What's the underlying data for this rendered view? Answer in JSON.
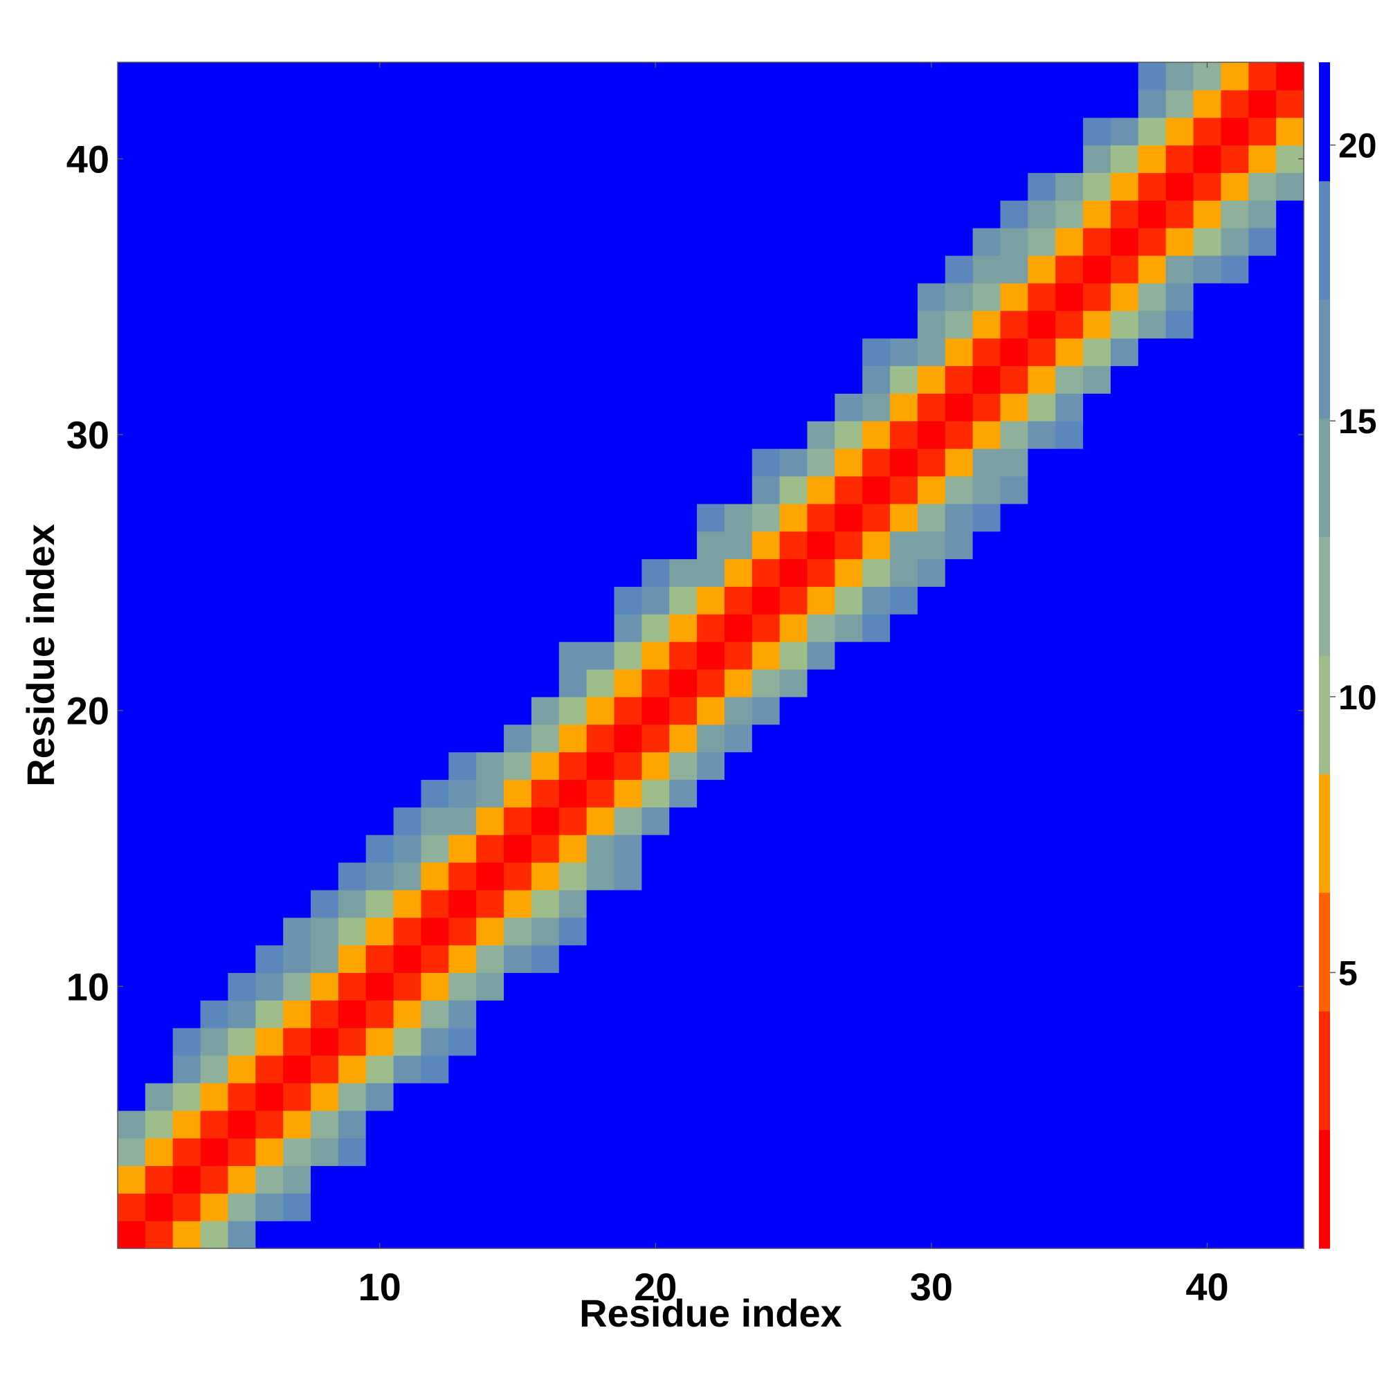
{
  "chart_data": {
    "type": "heatmap",
    "title": "",
    "xlabel": "Residue index",
    "ylabel": "Residue index",
    "x_range": [
      1,
      43
    ],
    "y_range": [
      1,
      43
    ],
    "x_ticks": [
      10,
      20,
      30,
      40
    ],
    "y_ticks": [
      10,
      20,
      30,
      40
    ],
    "colorbar": {
      "ticks": [
        5,
        10,
        15,
        20
      ],
      "range": [
        0,
        21.5
      ],
      "bands": [
        {
          "from": 0.0,
          "to": 2.15,
          "color": "#ff0000"
        },
        {
          "from": 2.15,
          "to": 4.3,
          "color": "#ff2a00"
        },
        {
          "from": 4.3,
          "to": 6.45,
          "color": "#ff6000"
        },
        {
          "from": 6.45,
          "to": 8.6,
          "color": "#ffa500"
        },
        {
          "from": 8.6,
          "to": 10.75,
          "color": "#9fbd8b"
        },
        {
          "from": 10.75,
          "to": 12.9,
          "color": "#8fb09a"
        },
        {
          "from": 12.9,
          "to": 15.05,
          "color": "#7aa0a4"
        },
        {
          "from": 15.05,
          "to": 17.2,
          "color": "#6a93b0"
        },
        {
          "from": 17.2,
          "to": 19.35,
          "color": "#5b87bd"
        },
        {
          "from": 19.35,
          "to": 21.5,
          "color": "#0000ff"
        }
      ]
    },
    "cell_rule": "value = min(21.5, 3.8 * |i - j|) for residues i, j in 1..43 (approximate distance map)",
    "colors": {
      "contact": "#ff0000",
      "near": "#ff6000",
      "mid": "#ffa500",
      "far": "#9fbd8b",
      "farther": "#6a93b0",
      "max": "#0000ff"
    },
    "grid": false,
    "legend": "colorbar-right"
  }
}
